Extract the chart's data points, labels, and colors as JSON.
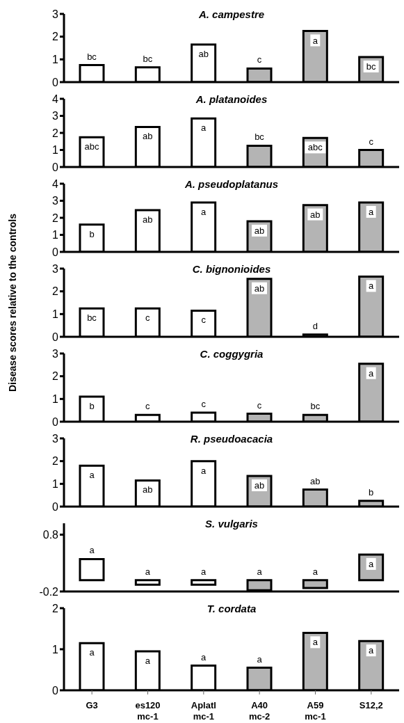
{
  "chart_data": [
    {
      "type": "bar",
      "title": "A. campestre",
      "categories": [
        null,
        null,
        null,
        null,
        null,
        null
      ],
      "values": [
        0.75,
        0.65,
        1.65,
        0.6,
        2.25,
        1.1
      ],
      "colors": [
        "#ffffff",
        "#ffffff",
        "#ffffff",
        "#b4b4b4",
        "#b4b4b4",
        "#b4b4b4"
      ],
      "ylim": [
        0,
        3
      ],
      "yticks": [
        0,
        1,
        2,
        3
      ],
      "tick_labels": "y",
      "value_labels": [
        "bc",
        "bc",
        "ab",
        "c",
        "a",
        "bc"
      ]
    },
    {
      "type": "bar",
      "title": "A. platanoides",
      "categories": [
        null,
        null,
        null,
        null,
        null,
        null
      ],
      "values": [
        1.75,
        2.35,
        2.85,
        1.25,
        1.7,
        1.0
      ],
      "colors": [
        "#ffffff",
        "#ffffff",
        "#ffffff",
        "#b4b4b4",
        "#b4b4b4",
        "#b4b4b4"
      ],
      "ylim": [
        0,
        4
      ],
      "yticks": [
        0,
        1,
        2,
        3,
        4
      ],
      "tick_labels": "y",
      "value_labels": [
        "abc",
        "ab",
        "a",
        "bc",
        "abc",
        "c"
      ]
    },
    {
      "type": "bar",
      "title": "A. pseudoplatanus",
      "categories": [
        null,
        null,
        null,
        null,
        null,
        null
      ],
      "values": [
        1.6,
        2.45,
        2.9,
        1.8,
        2.75,
        2.9
      ],
      "colors": [
        "#ffffff",
        "#ffffff",
        "#ffffff",
        "#b4b4b4",
        "#b4b4b4",
        "#b4b4b4"
      ],
      "ylim": [
        0,
        4
      ],
      "yticks": [
        0,
        1,
        2,
        3,
        4
      ],
      "tick_labels": "y",
      "value_labels": [
        "b",
        "ab",
        "a",
        "ab",
        "ab",
        "a"
      ]
    },
    {
      "type": "bar",
      "title": "C. bignonioides",
      "ylabel": "Disease scores relative to the controls",
      "categories": [
        null,
        null,
        null,
        null,
        null,
        null
      ],
      "values": [
        1.25,
        1.25,
        1.15,
        2.55,
        0.1,
        2.65
      ],
      "colors": [
        "#ffffff",
        "#ffffff",
        "#ffffff",
        "#b4b4b4",
        "#b4b4b4",
        "#b4b4b4"
      ],
      "ylim": [
        0,
        3
      ],
      "yticks": [
        0,
        1,
        2,
        3
      ],
      "tick_labels": "y",
      "value_labels": [
        "bc",
        "c",
        "c",
        "ab",
        "d",
        "a"
      ]
    },
    {
      "type": "bar",
      "title": "C. coggygria",
      "categories": [
        null,
        null,
        null,
        null,
        null,
        null
      ],
      "values": [
        1.1,
        0.3,
        0.4,
        0.35,
        0.3,
        2.55
      ],
      "colors": [
        "#ffffff",
        "#ffffff",
        "#ffffff",
        "#b4b4b4",
        "#b4b4b4",
        "#b4b4b4"
      ],
      "ylim": [
        0,
        3
      ],
      "yticks": [
        0,
        1,
        2,
        3
      ],
      "tick_labels": "y",
      "value_labels": [
        "b",
        "c",
        "c",
        "c",
        "bc",
        "a"
      ]
    },
    {
      "type": "bar",
      "title": "R. pseudoacacia",
      "categories": [
        null,
        null,
        null,
        null,
        null,
        null
      ],
      "values": [
        1.8,
        1.15,
        2.0,
        1.35,
        0.75,
        0.25
      ],
      "colors": [
        "#ffffff",
        "#ffffff",
        "#ffffff",
        "#b4b4b4",
        "#b4b4b4",
        "#b4b4b4"
      ],
      "ylim": [
        0,
        3
      ],
      "yticks": [
        0,
        1,
        2,
        3
      ],
      "tick_labels": "y",
      "value_labels": [
        "a",
        "ab",
        "a",
        "ab",
        "ab",
        "b"
      ]
    },
    {
      "type": "bar",
      "title": "S. vulgaris",
      "categories": [
        null,
        null,
        null,
        null,
        null,
        null
      ],
      "values": [
        0.37,
        -0.08,
        -0.08,
        -0.18,
        -0.14,
        0.45
      ],
      "colors": [
        "#ffffff",
        "#ffffff",
        "#ffffff",
        "#b4b4b4",
        "#b4b4b4",
        "#b4b4b4"
      ],
      "ylim": [
        -0.2,
        1.0
      ],
      "yticks": [
        -0.2,
        0.8
      ],
      "tick_labels": "y",
      "value_labels": [
        "a",
        "a",
        "a",
        "a",
        "a",
        "a"
      ]
    },
    {
      "type": "bar",
      "title": "T. cordata",
      "categories": [
        "G3",
        "es120 mc-1",
        "Aplatl mc-1",
        "A40 mc-2",
        "A59 mc-1",
        "S12,2"
      ],
      "values": [
        1.15,
        0.95,
        0.6,
        0.55,
        1.4,
        1.2
      ],
      "colors": [
        "#ffffff",
        "#ffffff",
        "#ffffff",
        "#b4b4b4",
        "#b4b4b4",
        "#b4b4b4"
      ],
      "ylim": [
        0,
        2
      ],
      "yticks": [
        0,
        1,
        2
      ],
      "value_labels": [
        "a",
        "a",
        "a",
        "a",
        "a",
        "a"
      ]
    }
  ]
}
